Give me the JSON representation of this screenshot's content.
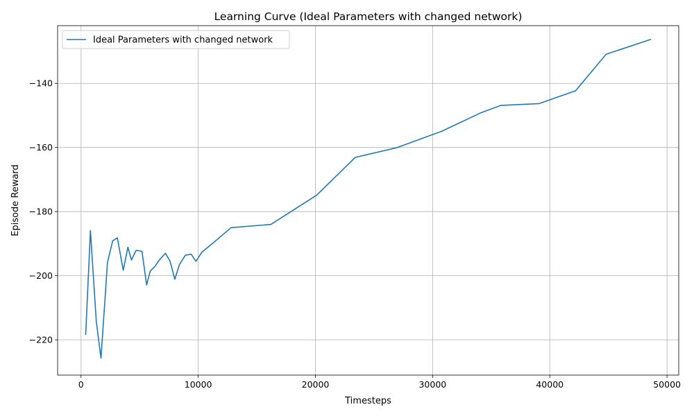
{
  "chart_data": {
    "type": "line",
    "title": "Learning Curve (Ideal Parameters with changed network)",
    "xlabel": "Timesteps",
    "ylabel": "Episode Reward",
    "xlim": [
      -2000,
      51000
    ],
    "ylim": [
      -231,
      -122
    ],
    "xticks": [
      0,
      10000,
      20000,
      30000,
      40000,
      50000
    ],
    "xtick_labels": [
      "0",
      "10000",
      "20000",
      "30000",
      "40000",
      "50000"
    ],
    "yticks": [
      -220,
      -200,
      -180,
      -160,
      -140
    ],
    "ytick_labels": [
      "−220",
      "−200",
      "−180",
      "−160",
      "−140"
    ],
    "grid": true,
    "legend_position": "top-left",
    "series": [
      {
        "name": "Ideal Parameters with changed network",
        "color": "#1f77b4",
        "x": [
          400,
          800,
          1300,
          1700,
          2050,
          2250,
          2700,
          3100,
          3600,
          4000,
          4300,
          4700,
          5200,
          5600,
          5900,
          6300,
          6700,
          7200,
          7600,
          8000,
          8400,
          8900,
          9400,
          9800,
          10300,
          11200,
          12800,
          16200,
          20100,
          23400,
          26900,
          30800,
          34100,
          35800,
          39100,
          42200,
          44800,
          48600
        ],
        "y": [
          -218.3,
          -185.9,
          -214.2,
          -225.7,
          -207,
          -195.9,
          -189.1,
          -188.2,
          -198.3,
          -191.1,
          -195.1,
          -192.1,
          -192.4,
          -202.9,
          -198.6,
          -197.1,
          -195.0,
          -193.0,
          -195.5,
          -201.1,
          -196.5,
          -193.6,
          -193.3,
          -195.5,
          -192.7,
          -190.0,
          -185.0,
          -184.0,
          -174.9,
          -163.1,
          -160.1,
          -154.9,
          -149.2,
          -146.9,
          -146.3,
          -142.3,
          -130.9,
          -126.3
        ]
      }
    ]
  }
}
